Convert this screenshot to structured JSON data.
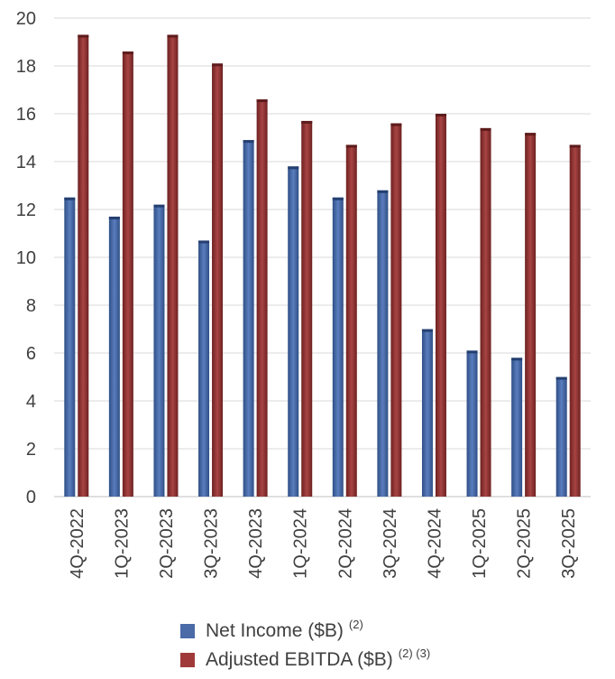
{
  "chart_data": {
    "type": "bar",
    "categories": [
      "4Q-2022",
      "1Q-2023",
      "2Q-2023",
      "3Q-2023",
      "4Q-2023",
      "1Q-2024",
      "2Q-2024",
      "3Q-2024",
      "4Q-2024",
      "1Q-2025",
      "2Q-2025",
      "3Q-2025"
    ],
    "series": [
      {
        "name": "Net Income ($B)",
        "note": "(2)",
        "color": "#4a6aa8",
        "values": [
          12.5,
          11.7,
          12.2,
          10.7,
          14.9,
          13.8,
          12.5,
          12.8,
          7.0,
          6.1,
          5.8,
          5.0
        ]
      },
      {
        "name": "Adjusted EBITDA ($B)",
        "note": "(2) (3)",
        "color": "#a03a3a",
        "values": [
          19.3,
          18.6,
          19.3,
          18.1,
          16.6,
          15.7,
          14.7,
          15.6,
          16.0,
          15.4,
          15.2,
          14.7
        ]
      }
    ],
    "yticks": [
      "0",
      "2",
      "4",
      "6",
      "8",
      "10",
      "12",
      "14",
      "16",
      "18",
      "20"
    ],
    "ylim": [
      0,
      20
    ],
    "grid": true,
    "legend_position": "bottom-center"
  }
}
